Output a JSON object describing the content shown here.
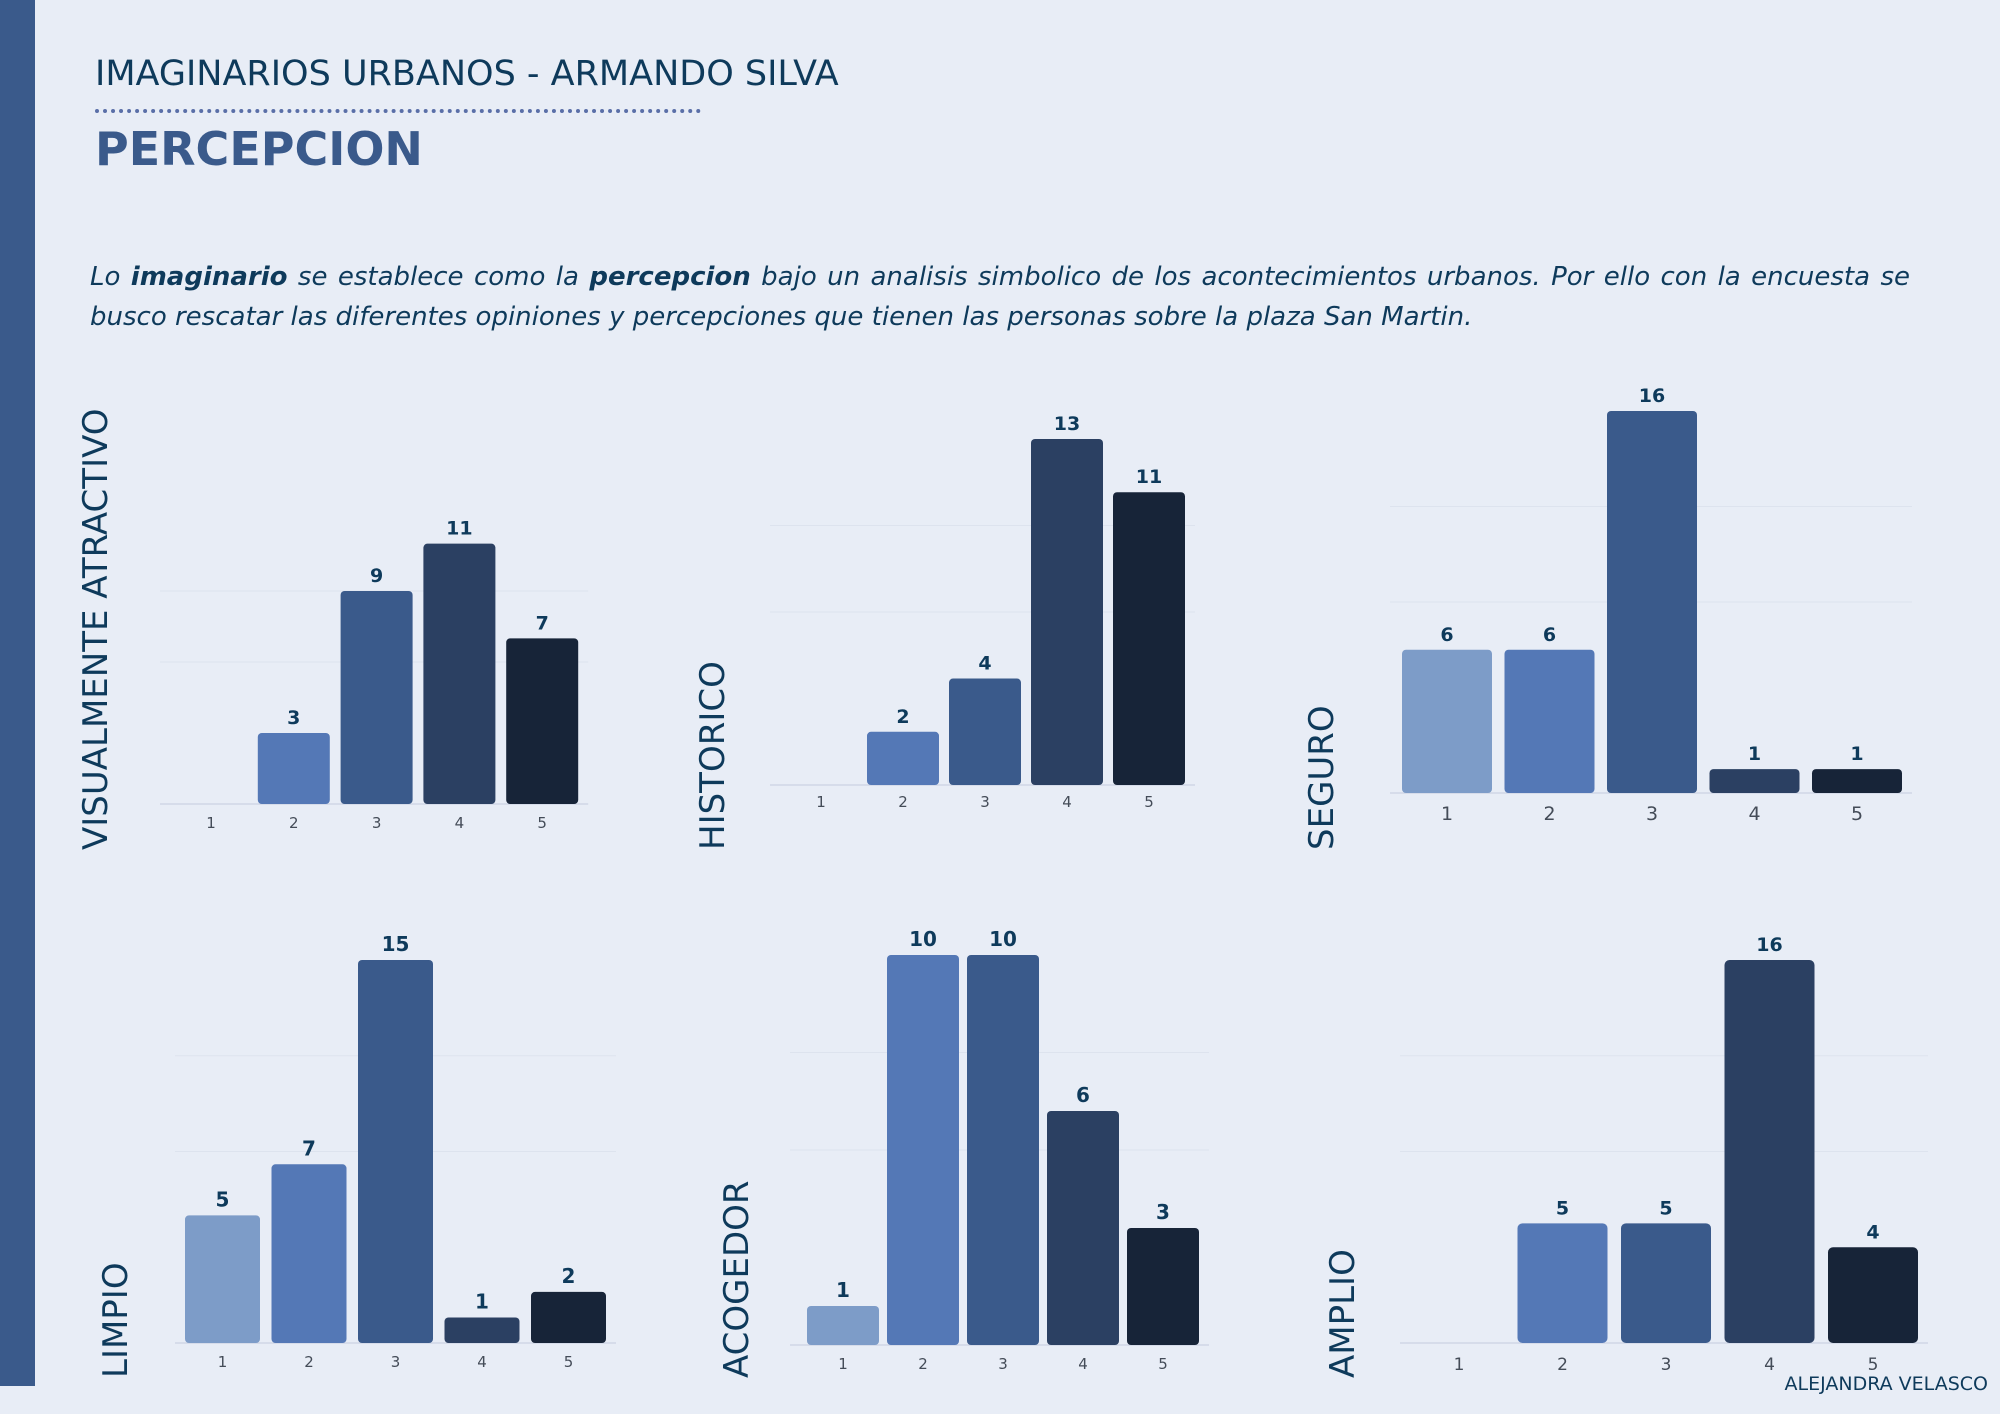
{
  "header": {
    "title": "IMAGINARIOS URBANOS - ARMANDO SILVA",
    "page_title": "PERCEPCION"
  },
  "intro": {
    "part1": "Lo ",
    "bold1": "imaginario",
    "part2": " se establece como la ",
    "bold2": "percepcion",
    "part3": " bajo un analisis simbolico de los acontecimientos urbanos. Por ello con la encuesta se busco rescatar las diferentes opiniones y percepciones que tienen las personas sobre la plaza San Martin."
  },
  "footer": {
    "author": "ALEJANDRA VELASCO"
  },
  "colors": [
    "#7d9cc8",
    "#5478b6",
    "#3a5a8b",
    "#2b4062",
    "#172438"
  ],
  "chart_data": [
    {
      "type": "bar",
      "title": "VISUALMENTE ATRACTIVO",
      "categories": [
        "1",
        "2",
        "3",
        "4",
        "5"
      ],
      "values": [
        0,
        3,
        9,
        11,
        7
      ],
      "ylim": [
        0,
        12
      ],
      "labels": [
        "",
        "3",
        "9",
        "11",
        "7"
      ]
    },
    {
      "type": "bar",
      "title": "HISTORICO",
      "categories": [
        "1",
        "2",
        "3",
        "4",
        "5"
      ],
      "values": [
        0,
        2,
        4,
        13,
        11
      ],
      "ylim": [
        0,
        13
      ],
      "labels": [
        "",
        "2",
        "4",
        "13",
        "11"
      ]
    },
    {
      "type": "bar",
      "title": "SEGURO",
      "categories": [
        "1",
        "2",
        "3",
        "4",
        "5"
      ],
      "values": [
        6,
        6,
        16,
        1,
        1
      ],
      "ylim": [
        0,
        16
      ],
      "labels": [
        "6",
        "6",
        "16",
        "1",
        "1"
      ]
    },
    {
      "type": "bar",
      "title": "LIMPIO",
      "categories": [
        "1",
        "2",
        "3",
        "4",
        "5"
      ],
      "values": [
        5,
        7,
        15,
        1,
        2
      ],
      "ylim": [
        0,
        15
      ],
      "labels": [
        "5",
        "7",
        "15",
        "1",
        "2"
      ]
    },
    {
      "type": "bar",
      "title": "ACOGEDOR",
      "categories": [
        "1",
        "2",
        "3",
        "4",
        "5"
      ],
      "values": [
        1,
        10,
        10,
        6,
        3
      ],
      "ylim": [
        0,
        10
      ],
      "labels": [
        "1",
        "10",
        "10",
        "6",
        "3"
      ]
    },
    {
      "type": "bar",
      "title": "AMPLIO",
      "categories": [
        "1",
        "2",
        "3",
        "4",
        "5"
      ],
      "values": [
        0,
        5,
        5,
        16,
        4
      ],
      "ylim": [
        0,
        16
      ],
      "labels": [
        "",
        "5",
        "5",
        "16",
        "4"
      ]
    }
  ]
}
